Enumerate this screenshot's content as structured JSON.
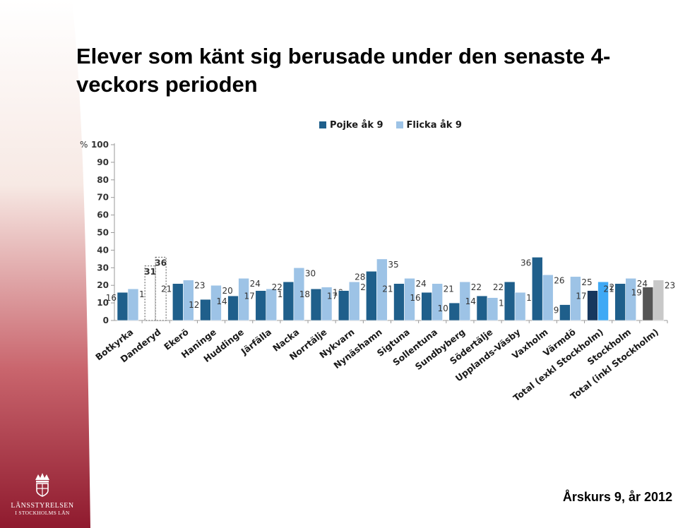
{
  "title": "Elever som känt sig berusade under den senaste 4-veckors perioden",
  "footer": "Årskurs 9, år 2012",
  "logo": {
    "line1": "LÄNSSTYRELSEN",
    "line2": "I STOCKHOLMS LÄN"
  },
  "colors": {
    "pojke": "#1f5f8b",
    "flicka": "#9dc3e6",
    "highlight_pojke": "#17375e",
    "highlight_flicka": "#3fa9f5",
    "total_pojke": "#555555",
    "total_flicka": "#c8c8c8",
    "band_top": "#ffffff",
    "band_bottom": "#9b1b30"
  },
  "chart_data": {
    "type": "bar",
    "ylabel": "%",
    "ylim": [
      0,
      100
    ],
    "yticks": [
      "0",
      "10",
      "20",
      "30",
      "40",
      "50",
      "60",
      "70",
      "80",
      "90",
      "100"
    ],
    "legend_position": "top",
    "categories": [
      "Botkyrka",
      "Danderyd",
      "Ekerö",
      "Haninge",
      "Huddinge",
      "Järfälla",
      "Nacka",
      "Norrtälje",
      "Nykvarn",
      "Nynäshamn",
      "Sigtuna",
      "Sollentuna",
      "Sundbyberg",
      "Södertälje",
      "Upplands-Väsby",
      "Vaxholm",
      "Värmdö",
      "Total (exkl Stockholm)",
      "Stockholm",
      "Total (inkl Stockholm)"
    ],
    "series": [
      {
        "name": "Pojke åk 9",
        "values": [
          16,
          31,
          21,
          12,
          14,
          17,
          22,
          18,
          17,
          28,
          21,
          16,
          10,
          14,
          22,
          36,
          9,
          17,
          21,
          19
        ]
      },
      {
        "name": "Flicka åk 9",
        "values": [
          18,
          36,
          23,
          20,
          24,
          18,
          30,
          19,
          22,
          35,
          24,
          21,
          22,
          13,
          16,
          26,
          25,
          22,
          24,
          23
        ]
      }
    ],
    "data_labels": [
      [
        "16",
        "31",
        "21",
        "12",
        "14",
        "17",
        "22",
        "18",
        "17",
        "28",
        "21",
        "16",
        "10",
        "14",
        "22",
        "36",
        "9",
        "17",
        "21",
        "19"
      ],
      [
        "18",
        "36",
        "23",
        "20",
        "24",
        "18",
        "30",
        "19",
        "22",
        "35",
        "24",
        "21",
        "22",
        "13",
        "16",
        "26",
        "25",
        "22",
        "24",
        "23"
      ]
    ],
    "styled_groups": {
      "dashed": [
        1
      ],
      "highlight": [
        17
      ],
      "total": [
        19
      ]
    }
  }
}
